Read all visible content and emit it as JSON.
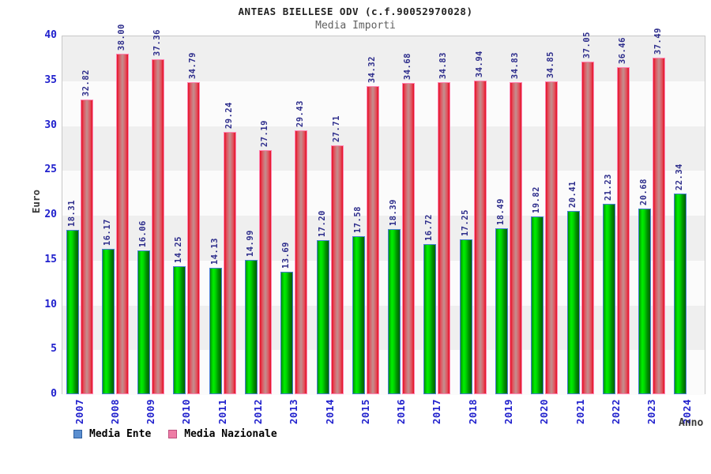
{
  "chart": {
    "title": "ANTEAS BIELLESE ODV (c.f.90052970028)",
    "subtitle": "Media Importi",
    "ylabel": "Euro",
    "xlabel": "Anno"
  },
  "chart_data": {
    "type": "bar",
    "title": "ANTEAS BIELLESE ODV (c.f.90052970028)",
    "subtitle": "Media Importi",
    "xlabel": "Anno",
    "ylabel": "Euro",
    "ylim": [
      0,
      40
    ],
    "yticks": [
      0,
      5,
      10,
      15,
      20,
      25,
      30,
      35,
      40
    ],
    "grid": "alternating horizontal bands every 5 units, gray band at top (35-40)",
    "legend_position": "bottom-left",
    "value_labels_rotated": true,
    "categories": [
      "2007",
      "2008",
      "2009",
      "2010",
      "2011",
      "2012",
      "2013",
      "2014",
      "2015",
      "2016",
      "2017",
      "2018",
      "2019",
      "2020",
      "2021",
      "2022",
      "2023",
      "2024"
    ],
    "series": [
      {
        "name": "Media Ente",
        "bar_color": "green-gradient",
        "bar_border": "#4a7fd4",
        "legend_color": "#5b8fd0",
        "values": [
          18.31,
          16.17,
          16.06,
          14.25,
          14.13,
          14.99,
          13.69,
          17.2,
          17.58,
          18.39,
          16.72,
          17.25,
          18.49,
          19.82,
          20.41,
          21.23,
          20.68,
          22.34
        ],
        "labels": [
          "18.31",
          "16.17",
          "16.06",
          "14.25",
          "14.13",
          "14.99",
          "13.69",
          "17.20",
          "17.58",
          "18.39",
          "16.72",
          "17.25",
          "18.49",
          "19.82",
          "20.41",
          "21.23",
          "20.68",
          "22.34"
        ]
      },
      {
        "name": "Media Nazionale",
        "bar_color": "red-gradient",
        "bar_border": "#ff85b2",
        "legend_color": "#ee7da6",
        "values": [
          32.82,
          38.0,
          37.36,
          34.79,
          29.24,
          27.19,
          29.43,
          27.71,
          34.32,
          34.68,
          34.83,
          34.94,
          34.83,
          34.85,
          37.05,
          36.46,
          37.49,
          null
        ],
        "labels": [
          "32.82",
          "38.00",
          "37.36",
          "34.79",
          "29.24",
          "27.19",
          "29.43",
          "27.71",
          "34.32",
          "34.68",
          "34.83",
          "34.94",
          "34.83",
          "34.85",
          "37.05",
          "36.46",
          "37.49",
          ""
        ]
      }
    ]
  },
  "colors": {
    "axis_tick_label": "#2121cd",
    "value_label": "#2e2e8c",
    "title_text": "#222222",
    "subtitle_text": "#5f5f5f",
    "axis_title_text": "#3a3a3a",
    "plot_border": "#c8c8c8",
    "band_gray": "#efefef",
    "band_white": "#fbfbfb",
    "green_bar": "#00d400",
    "red_bar": "#e60f26",
    "legend_ente": "#5b8fd0",
    "legend_nazionale": "#ee7da6"
  }
}
